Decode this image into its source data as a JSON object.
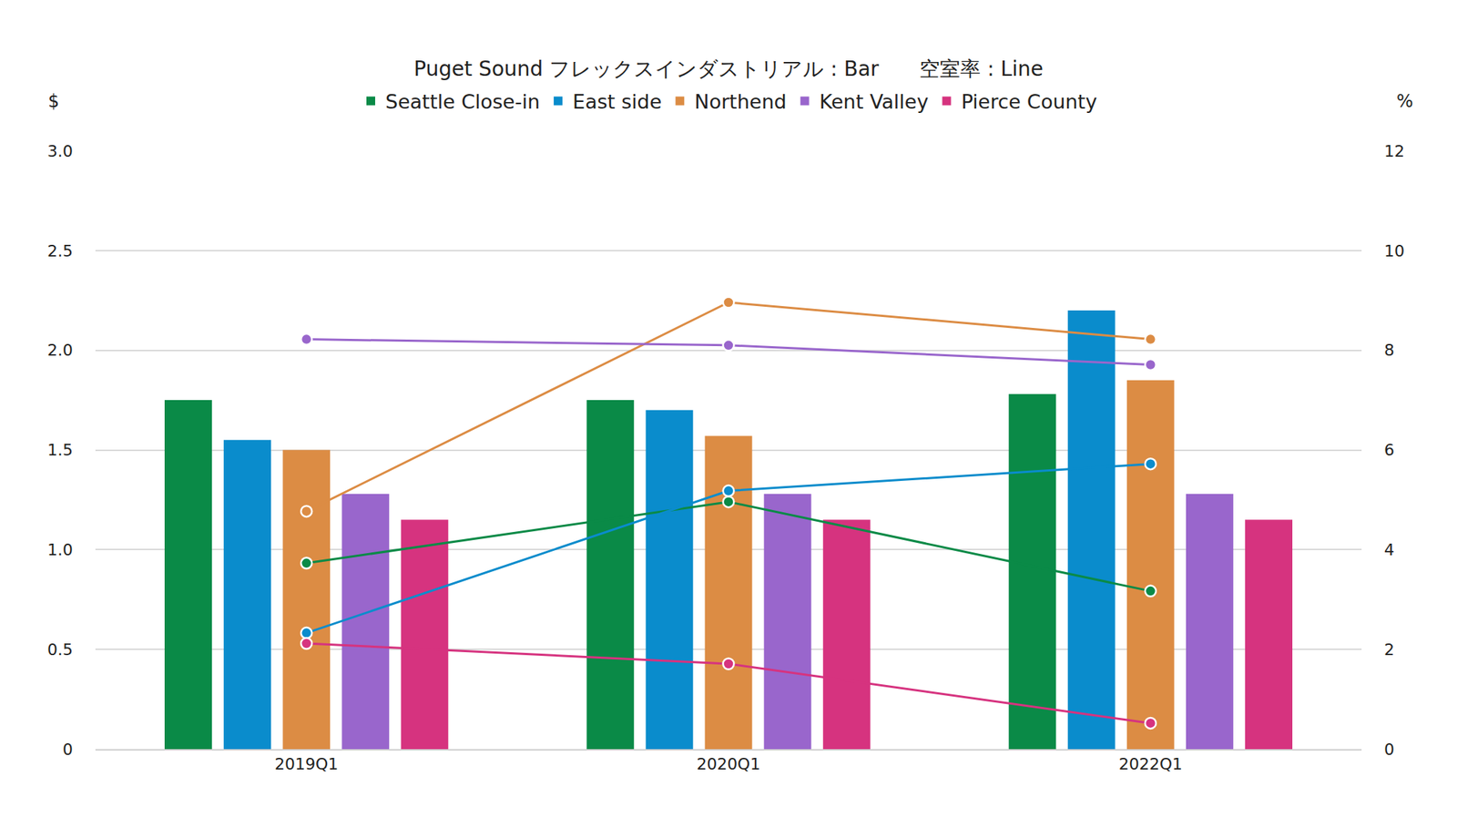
{
  "chart_data": {
    "type": "bar",
    "title": "Puget Sound フレックスインダストリアル : Bar　　空室率 : Line",
    "y_label": "$",
    "y2_label": "%",
    "categories": [
      "2019Q1",
      "2020Q1",
      "2022Q1"
    ],
    "series": [
      {
        "name": "Seattle Close-in",
        "color": "#0a8a47",
        "type": "bar",
        "values": [
          1.75,
          1.75,
          1.78
        ]
      },
      {
        "name": "East side",
        "color": "#0a8ccc",
        "type": "bar",
        "values": [
          1.55,
          1.7,
          2.2
        ]
      },
      {
        "name": "Northend",
        "color": "#dc8c44",
        "type": "bar",
        "values": [
          1.5,
          1.57,
          1.85
        ]
      },
      {
        "name": "Kent Valley",
        "color": "#9966cc",
        "type": "bar",
        "values": [
          1.28,
          1.28,
          1.28
        ]
      },
      {
        "name": "Pierce County",
        "color": "#d6337f",
        "type": "bar",
        "values": [
          1.15,
          1.15,
          1.15
        ]
      },
      {
        "name": "Seattle Close-in",
        "color": "#0a8a47",
        "type": "line",
        "axis": "y2",
        "marker": "circle",
        "values": [
          3.73,
          4.96,
          3.17
        ]
      },
      {
        "name": "East side",
        "color": "#0a8ccc",
        "type": "line",
        "axis": "y2",
        "marker": "circle",
        "values": [
          2.33,
          5.18,
          5.72
        ]
      },
      {
        "name": "Northend",
        "color": "#dc8c44",
        "type": "line",
        "axis": "y2",
        "marker": "circle",
        "values": [
          4.77,
          8.96,
          8.22
        ]
      },
      {
        "name": "Kent Valley",
        "color": "#9966cc",
        "type": "line",
        "axis": "y2",
        "marker": "circle",
        "values": [
          8.22,
          8.1,
          7.71
        ]
      },
      {
        "name": "Pierce County",
        "color": "#d6337f",
        "type": "line",
        "axis": "y2",
        "marker": "circle",
        "values": [
          2.12,
          1.71,
          0.52
        ]
      }
    ],
    "ylim": [
      0,
      3
    ],
    "yticks": [
      0,
      0.5,
      {
        "value": 1,
        "label": "1.0"
      },
      1.5,
      {
        "value": 2,
        "label": "2.0"
      },
      2.5,
      {
        "value": 3,
        "label": "3.0"
      }
    ],
    "y2lim": [
      0,
      12
    ],
    "y2ticks": [
      0,
      2,
      4,
      6,
      8,
      10,
      12
    ],
    "grid": true,
    "legend": "top"
  }
}
